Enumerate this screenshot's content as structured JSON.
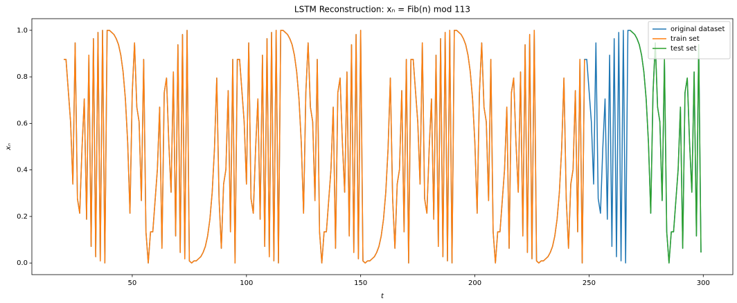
{
  "chart_data": {
    "type": "line",
    "title": "LSTM Reconstruction: xₙ = Fib(n) mod 113",
    "x_label": "t",
    "y_label": "xₙ",
    "x": [
      20,
      21,
      22,
      23,
      24,
      25,
      26,
      27,
      28,
      29,
      30,
      31,
      32,
      33,
      34,
      35,
      36,
      37,
      38,
      39,
      40,
      41,
      42,
      43,
      44,
      45,
      46,
      47,
      48,
      49,
      50,
      51,
      52,
      53,
      54,
      55,
      56,
      57,
      58,
      59,
      60,
      61,
      62,
      63,
      64,
      65,
      66,
      67,
      68,
      69,
      70,
      71,
      72,
      73,
      74,
      75,
      76,
      77,
      78,
      79,
      80,
      81,
      82,
      83,
      84,
      85,
      86,
      87,
      88,
      89,
      90,
      91,
      92,
      93,
      94,
      95,
      96,
      97,
      98,
      99,
      100,
      101,
      102,
      103,
      104,
      105,
      106,
      107,
      108,
      109,
      110,
      111,
      112,
      113,
      114,
      115,
      116,
      117,
      118,
      119,
      120,
      121,
      122,
      123,
      124,
      125,
      126,
      127,
      128,
      129,
      130,
      131,
      132,
      133,
      134,
      135,
      136,
      137,
      138,
      139,
      140,
      141,
      142,
      143,
      144,
      145,
      146,
      147,
      148,
      149,
      150,
      151,
      152,
      153,
      154,
      155,
      156,
      157,
      158,
      159,
      160,
      161,
      162,
      163,
      164,
      165,
      166,
      167,
      168,
      169,
      170,
      171,
      172,
      173,
      174,
      175,
      176,
      177,
      178,
      179,
      180,
      181,
      182,
      183,
      184,
      185,
      186,
      187,
      188,
      189,
      190,
      191,
      192,
      193,
      194,
      195,
      196,
      197,
      198,
      199,
      200,
      201,
      202,
      203,
      204,
      205,
      206,
      207,
      208,
      209,
      210,
      211,
      212,
      213,
      214,
      215,
      216,
      217,
      218,
      219,
      220,
      221,
      222,
      223,
      224,
      225,
      226,
      227,
      228,
      229,
      230,
      231,
      232,
      233,
      234,
      235,
      236,
      237,
      238,
      239,
      240,
      241,
      242,
      243,
      244,
      245,
      246,
      247,
      248,
      249,
      250,
      251,
      252,
      253,
      254,
      255,
      256,
      257,
      258,
      259,
      260,
      261,
      262,
      263,
      264,
      265,
      266,
      267,
      268,
      269,
      270,
      271,
      272,
      273,
      274,
      275,
      276,
      277,
      278,
      279,
      280,
      281,
      282,
      283,
      284,
      285,
      286,
      287,
      288,
      289,
      290,
      291,
      292,
      293,
      294,
      295,
      296,
      297,
      298,
      299
    ],
    "series": [
      {
        "name": "original dataset",
        "color": "#1f77b4",
        "values": [
          0.875,
          0.875,
          0.741,
          0.607,
          0.339,
          0.946,
          0.277,
          0.214,
          0.491,
          0.705,
          0.188,
          0.893,
          0.071,
          0.964,
          0.027,
          0.991,
          0.009,
          1,
          0,
          1,
          1,
          0.991,
          0.982,
          0.964,
          0.938,
          0.893,
          0.821,
          0.705,
          0.518,
          0.214,
          0.732,
          0.946,
          0.67,
          0.607,
          0.268,
          0.875,
          0.134,
          0,
          0.134,
          0.134,
          0.268,
          0.402,
          0.67,
          0.063,
          0.732,
          0.795,
          0.518,
          0.304,
          0.821,
          0.116,
          0.938,
          0.045,
          0.982,
          0.018,
          1,
          0.009,
          0,
          0.009,
          0.009,
          0.018,
          0.027,
          0.045,
          0.071,
          0.116,
          0.188,
          0.304,
          0.491,
          0.795,
          0.277,
          0.063,
          0.339,
          0.402,
          0.741,
          0.134,
          0.875,
          0,
          0.875,
          0.875,
          0.741,
          0.607,
          0.339,
          0.946,
          0.277,
          0.214,
          0.491,
          0.705,
          0.188,
          0.893,
          0.071,
          0.964,
          0.027,
          0.991,
          0.009,
          1,
          0,
          1,
          1,
          0.991,
          0.982,
          0.964,
          0.938,
          0.893,
          0.821,
          0.705,
          0.518,
          0.214,
          0.732,
          0.946,
          0.67,
          0.607,
          0.268,
          0.875,
          0.134,
          0,
          0.134,
          0.134,
          0.268,
          0.402,
          0.67,
          0.063,
          0.732,
          0.795,
          0.518,
          0.304,
          0.821,
          0.116,
          0.938,
          0.045,
          0.982,
          0.018,
          1,
          0.009,
          0,
          0.009,
          0.009,
          0.018,
          0.027,
          0.045,
          0.071,
          0.116,
          0.188,
          0.304,
          0.491,
          0.795,
          0.277,
          0.063,
          0.339,
          0.402,
          0.741,
          0.134,
          0.875,
          0,
          0.875,
          0.875,
          0.741,
          0.607,
          0.339,
          0.946,
          0.277,
          0.214,
          0.491,
          0.705,
          0.188,
          0.893,
          0.071,
          0.964,
          0.027,
          0.991,
          0.009,
          1,
          0,
          1,
          1,
          0.991,
          0.982,
          0.964,
          0.938,
          0.893,
          0.821,
          0.705,
          0.518,
          0.214,
          0.732,
          0.946,
          0.67,
          0.607,
          0.268,
          0.875,
          0.134,
          0,
          0.134,
          0.134,
          0.268,
          0.402,
          0.67,
          0.063,
          0.732,
          0.795,
          0.518,
          0.304,
          0.821,
          0.116,
          0.938,
          0.045,
          0.982,
          0.018,
          1,
          0.009,
          0,
          0.009,
          0.009,
          0.018,
          0.027,
          0.045,
          0.071,
          0.116,
          0.188,
          0.304,
          0.491,
          0.795,
          0.277,
          0.063,
          0.339,
          0.402,
          0.741,
          0.134,
          0.875,
          0,
          0.875,
          0.875,
          0.741,
          0.607,
          0.339,
          0.946,
          0.277,
          0.214,
          0.491,
          0.705,
          0.188,
          0.893,
          0.071,
          0.964,
          0.027,
          0.991,
          0.009,
          1,
          0,
          1,
          1,
          0.991,
          0.982,
          0.964,
          0.938,
          0.893,
          0.821,
          0.705,
          0.518,
          0.214,
          0.732,
          0.946,
          0.67,
          0.607,
          0.268,
          0.875,
          0.134,
          0,
          0.134,
          0.134,
          0.268,
          0.402,
          0.67,
          0.063,
          0.732,
          0.795,
          0.518,
          0.304,
          0.821,
          0.116,
          0.938,
          0.045
        ]
      },
      {
        "name": "train set",
        "color": "#ff7f0e",
        "values": [
          0.875,
          0.875,
          0.741,
          0.607,
          0.339,
          0.946,
          0.277,
          0.214,
          0.491,
          0.705,
          0.188,
          0.893,
          0.071,
          0.964,
          0.027,
          0.991,
          0.009,
          1,
          0,
          1,
          1,
          0.991,
          0.982,
          0.964,
          0.938,
          0.893,
          0.821,
          0.705,
          0.518,
          0.214,
          0.732,
          0.946,
          0.67,
          0.607,
          0.268,
          0.875,
          0.134,
          0,
          0.134,
          0.134,
          0.268,
          0.402,
          0.67,
          0.063,
          0.732,
          0.795,
          0.518,
          0.304,
          0.821,
          0.116,
          0.938,
          0.045,
          0.982,
          0.018,
          1,
          0.009,
          0,
          0.009,
          0.009,
          0.018,
          0.027,
          0.045,
          0.071,
          0.116,
          0.188,
          0.304,
          0.491,
          0.795,
          0.277,
          0.063,
          0.339,
          0.402,
          0.741,
          0.134,
          0.875,
          0,
          0.875,
          0.875,
          0.741,
          0.607,
          0.339,
          0.946,
          0.277,
          0.214,
          0.491,
          0.705,
          0.188,
          0.893,
          0.071,
          0.964,
          0.027,
          0.991,
          0.009,
          1,
          0,
          1,
          1,
          0.991,
          0.982,
          0.964,
          0.938,
          0.893,
          0.821,
          0.705,
          0.518,
          0.214,
          0.732,
          0.946,
          0.67,
          0.607,
          0.268,
          0.875,
          0.134,
          0,
          0.134,
          0.134,
          0.268,
          0.402,
          0.67,
          0.063,
          0.732,
          0.795,
          0.518,
          0.304,
          0.821,
          0.116,
          0.938,
          0.045,
          0.982,
          0.018,
          1,
          0.009,
          0,
          0.009,
          0.009,
          0.018,
          0.027,
          0.045,
          0.071,
          0.116,
          0.188,
          0.304,
          0.491,
          0.795,
          0.277,
          0.063,
          0.339,
          0.402,
          0.741,
          0.134,
          0.875,
          0,
          0.875,
          0.875,
          0.741,
          0.607,
          0.339,
          0.946,
          0.277,
          0.214,
          0.491,
          0.705,
          0.188,
          0.893,
          0.071,
          0.964,
          0.027,
          0.991,
          0.009,
          1,
          0,
          1,
          1,
          0.991,
          0.982,
          0.964,
          0.938,
          0.893,
          0.821,
          0.705,
          0.518,
          0.214,
          0.732,
          0.946,
          0.67,
          0.607,
          0.268,
          0.875,
          0.134,
          0,
          0.134,
          0.134,
          0.268,
          0.402,
          0.67,
          0.063,
          0.732,
          0.795,
          0.518,
          0.304,
          0.821,
          0.116,
          0.938,
          0.045,
          0.982,
          0.018,
          1,
          0.009,
          0,
          0.009,
          0.009,
          0.018,
          0.027,
          0.045,
          0.071,
          0.116,
          0.188,
          0.304,
          0.491,
          0.795,
          0.277,
          0.063,
          0.339,
          0.402,
          0.741,
          0.134,
          0.875,
          0,
          0.875,
          null,
          null,
          null,
          null,
          null,
          null,
          null,
          null,
          null,
          null,
          null,
          null,
          null,
          null,
          null,
          null,
          null,
          null,
          null,
          null,
          null,
          null,
          null,
          null,
          null,
          null,
          null,
          null,
          null,
          null,
          null,
          null,
          null,
          null,
          null,
          null,
          null,
          null,
          null,
          null,
          null,
          null,
          null,
          null,
          null,
          null,
          null,
          null,
          null,
          null,
          null
        ]
      },
      {
        "name": "test set",
        "color": "#2ca02c",
        "values": [
          null,
          null,
          null,
          null,
          null,
          null,
          null,
          null,
          null,
          null,
          null,
          null,
          null,
          null,
          null,
          null,
          null,
          null,
          null,
          null,
          null,
          null,
          null,
          null,
          null,
          null,
          null,
          null,
          null,
          null,
          null,
          null,
          null,
          null,
          null,
          null,
          null,
          null,
          null,
          null,
          null,
          null,
          null,
          null,
          null,
          null,
          null,
          null,
          null,
          null,
          null,
          null,
          null,
          null,
          null,
          null,
          null,
          null,
          null,
          null,
          null,
          null,
          null,
          null,
          null,
          null,
          null,
          null,
          null,
          null,
          null,
          null,
          null,
          null,
          null,
          null,
          null,
          null,
          null,
          null,
          null,
          null,
          null,
          null,
          null,
          null,
          null,
          null,
          null,
          null,
          null,
          null,
          null,
          null,
          null,
          null,
          null,
          null,
          null,
          null,
          null,
          null,
          null,
          null,
          null,
          null,
          null,
          null,
          null,
          null,
          null,
          null,
          null,
          null,
          null,
          null,
          null,
          null,
          null,
          null,
          null,
          null,
          null,
          null,
          null,
          null,
          null,
          null,
          null,
          null,
          null,
          null,
          null,
          null,
          null,
          null,
          null,
          null,
          null,
          null,
          null,
          null,
          null,
          null,
          null,
          null,
          null,
          null,
          null,
          null,
          null,
          null,
          null,
          null,
          null,
          null,
          null,
          null,
          null,
          null,
          null,
          null,
          null,
          null,
          null,
          null,
          null,
          null,
          null,
          null,
          null,
          null,
          null,
          null,
          null,
          null,
          null,
          null,
          null,
          null,
          null,
          null,
          null,
          null,
          null,
          null,
          null,
          null,
          null,
          null,
          null,
          null,
          null,
          null,
          null,
          null,
          null,
          null,
          null,
          null,
          null,
          null,
          null,
          null,
          null,
          null,
          null,
          null,
          null,
          null,
          null,
          null,
          null,
          null,
          null,
          null,
          null,
          null,
          null,
          null,
          null,
          null,
          null,
          null,
          null,
          null,
          null,
          null,
          null,
          null,
          null,
          null,
          null,
          null,
          null,
          null,
          null,
          null,
          null,
          null,
          null,
          null,
          null,
          null,
          null,
          null,
          null,
          null,
          1,
          0.991,
          0.982,
          0.964,
          0.938,
          0.893,
          0.821,
          0.705,
          0.518,
          0.214,
          0.732,
          0.946,
          0.67,
          0.607,
          0.268,
          0.875,
          0.134,
          0,
          0.134,
          0.134,
          0.268,
          0.402,
          0.67,
          0.063,
          0.732,
          0.795,
          0.518,
          0.304,
          0.821,
          0.116,
          0.938,
          0.045
        ]
      }
    ],
    "xlim": [
      6.05,
      312.95
    ],
    "ylim": [
      -0.05,
      1.05
    ],
    "xticks": [
      50,
      100,
      150,
      200,
      250,
      300
    ],
    "yticks": [
      {
        "value": 0,
        "label": "0.0"
      },
      0.2,
      0.4,
      0.6,
      0.8,
      {
        "value": 1,
        "label": "1.0"
      }
    ],
    "legend": "upper right"
  }
}
